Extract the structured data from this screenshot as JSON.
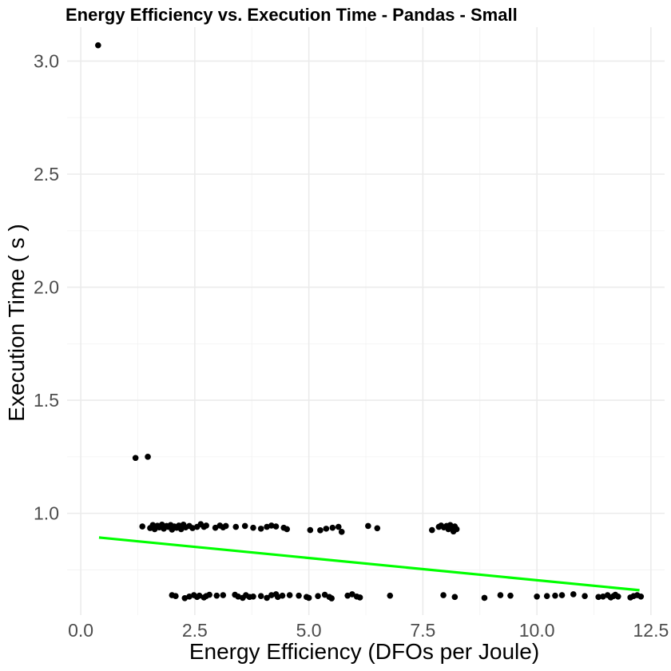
{
  "chart_data": {
    "type": "scatter",
    "title": "Energy Efficiency vs. Execution Time  -  Pandas  -  Small",
    "xlabel": "Energy Efficiency (DFOs per Joule)",
    "ylabel": "Execution Time ( s )",
    "xlim": [
      -0.3,
      12.8
    ],
    "ylim": [
      0.55,
      3.15
    ],
    "x_ticks": [
      0.0,
      2.5,
      5.0,
      7.5,
      10.0,
      12.5
    ],
    "x_tick_labels": [
      "0.0",
      "2.5",
      "5.0",
      "7.5",
      "10.0",
      "12.5"
    ],
    "y_ticks": [
      1.0,
      1.5,
      2.0,
      2.5,
      3.0
    ],
    "y_tick_labels": [
      "1.0",
      "1.5",
      "2.0",
      "2.5",
      "3.0"
    ],
    "grid": true,
    "point_color": "#000000",
    "trend_color": "#00ff00",
    "trend_line": {
      "x": [
        0.4,
        12.25
      ],
      "y": [
        0.893,
        0.66
      ]
    },
    "points": [
      [
        0.38,
        3.07
      ],
      [
        1.2,
        1.245
      ],
      [
        1.47,
        1.25
      ],
      [
        1.35,
        0.942
      ],
      [
        1.52,
        0.935
      ],
      [
        1.58,
        0.948
      ],
      [
        1.62,
        0.93
      ],
      [
        1.68,
        0.945
      ],
      [
        1.72,
        0.938
      ],
      [
        1.78,
        0.95
      ],
      [
        1.82,
        0.932
      ],
      [
        1.88,
        0.944
      ],
      [
        1.92,
        0.94
      ],
      [
        1.97,
        0.948
      ],
      [
        2.0,
        0.928
      ],
      [
        2.05,
        0.942
      ],
      [
        2.1,
        0.936
      ],
      [
        2.15,
        0.946
      ],
      [
        2.2,
        0.93
      ],
      [
        2.25,
        0.95
      ],
      [
        2.3,
        0.938
      ],
      [
        2.38,
        0.944
      ],
      [
        2.45,
        0.935
      ],
      [
        2.55,
        0.94
      ],
      [
        2.63,
        0.952
      ],
      [
        2.7,
        0.94
      ],
      [
        2.75,
        0.946
      ],
      [
        2.95,
        0.936
      ],
      [
        3.05,
        0.946
      ],
      [
        3.12,
        0.938
      ],
      [
        3.18,
        0.944
      ],
      [
        3.4,
        0.94
      ],
      [
        3.6,
        0.944
      ],
      [
        3.78,
        0.936
      ],
      [
        3.95,
        0.932
      ],
      [
        4.08,
        0.94
      ],
      [
        4.18,
        0.946
      ],
      [
        4.28,
        0.942
      ],
      [
        4.45,
        0.936
      ],
      [
        4.52,
        0.93
      ],
      [
        5.03,
        0.926
      ],
      [
        5.25,
        0.925
      ],
      [
        5.38,
        0.932
      ],
      [
        5.52,
        0.936
      ],
      [
        5.65,
        0.94
      ],
      [
        5.72,
        0.918
      ],
      [
        6.3,
        0.944
      ],
      [
        6.5,
        0.934
      ],
      [
        7.7,
        0.926
      ],
      [
        7.85,
        0.94
      ],
      [
        7.9,
        0.946
      ],
      [
        7.96,
        0.938
      ],
      [
        8.02,
        0.944
      ],
      [
        8.06,
        0.93
      ],
      [
        8.1,
        0.948
      ],
      [
        8.13,
        0.935
      ],
      [
        8.17,
        0.92
      ],
      [
        8.2,
        0.942
      ],
      [
        8.24,
        0.93
      ],
      [
        2.0,
        0.638
      ],
      [
        2.08,
        0.634
      ],
      [
        2.28,
        0.625
      ],
      [
        2.38,
        0.632
      ],
      [
        2.48,
        0.638
      ],
      [
        2.55,
        0.63
      ],
      [
        2.6,
        0.636
      ],
      [
        2.7,
        0.628
      ],
      [
        2.75,
        0.634
      ],
      [
        2.82,
        0.64
      ],
      [
        2.98,
        0.636
      ],
      [
        3.12,
        0.638
      ],
      [
        3.38,
        0.64
      ],
      [
        3.45,
        0.632
      ],
      [
        3.55,
        0.626
      ],
      [
        3.62,
        0.638
      ],
      [
        3.7,
        0.63
      ],
      [
        3.78,
        0.632
      ],
      [
        3.95,
        0.634
      ],
      [
        4.08,
        0.626
      ],
      [
        4.18,
        0.638
      ],
      [
        4.28,
        0.642
      ],
      [
        4.32,
        0.63
      ],
      [
        4.42,
        0.636
      ],
      [
        4.58,
        0.638
      ],
      [
        4.78,
        0.636
      ],
      [
        4.95,
        0.63
      ],
      [
        5.0,
        0.626
      ],
      [
        5.2,
        0.634
      ],
      [
        5.35,
        0.64
      ],
      [
        5.45,
        0.63
      ],
      [
        5.5,
        0.624
      ],
      [
        5.85,
        0.636
      ],
      [
        5.95,
        0.642
      ],
      [
        6.05,
        0.632
      ],
      [
        6.12,
        0.628
      ],
      [
        6.78,
        0.636
      ],
      [
        7.95,
        0.638
      ],
      [
        8.2,
        0.63
      ],
      [
        8.85,
        0.626
      ],
      [
        9.2,
        0.638
      ],
      [
        9.42,
        0.636
      ],
      [
        10.0,
        0.632
      ],
      [
        10.22,
        0.634
      ],
      [
        10.4,
        0.636
      ],
      [
        10.55,
        0.638
      ],
      [
        10.8,
        0.642
      ],
      [
        11.05,
        0.634
      ],
      [
        11.35,
        0.63
      ],
      [
        11.45,
        0.632
      ],
      [
        11.55,
        0.638
      ],
      [
        11.62,
        0.628
      ],
      [
        11.68,
        0.634
      ],
      [
        11.72,
        0.64
      ],
      [
        11.78,
        0.632
      ],
      [
        12.05,
        0.628
      ],
      [
        12.12,
        0.634
      ],
      [
        12.2,
        0.638
      ],
      [
        12.28,
        0.632
      ]
    ]
  }
}
